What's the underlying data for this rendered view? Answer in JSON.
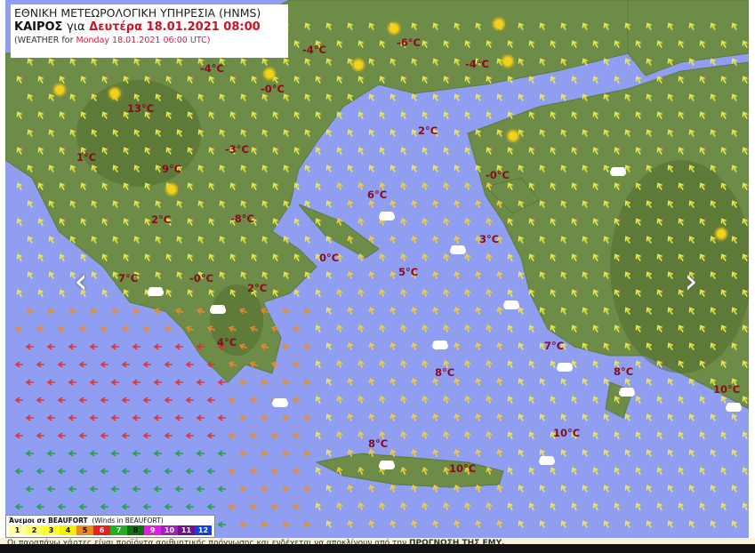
{
  "header": {
    "agency": "ΕΘΝΙΚΗ ΜΕΤΕΩΡΟΛΟΓΙΚΗ ΥΠΗΡΕΣΙΑ (HNMS)",
    "title_bold": "ΚΑΙΡΟΣ",
    "title_for": "για",
    "title_date": "Δευτέρα 18.01.2021 08:00",
    "subtitle_prefix": "(WEATHER for",
    "subtitle_date": "Monday 18.01.2021 06:00 UTC)"
  },
  "temperatures": [
    "-4°C",
    "-4°C",
    "-6°C",
    "-4°C",
    "-0°C",
    "13°C",
    "2°C",
    "1°C",
    "9°C",
    "-3°C",
    "-0°C",
    "6°C",
    "2°C",
    "-8°C",
    "3°C",
    "0°C",
    "5°C",
    "7°C",
    "-0°C",
    "2°C",
    "4°C",
    "7°C",
    "8°C",
    "8°C",
    "10°C",
    "10°C",
    "8°C",
    "10°C"
  ],
  "legend": {
    "title": "Άνεμοι σε BEAUFORT",
    "title_en": "(Winds in BEAUFORT)",
    "levels": [
      {
        "label": "1",
        "color": "#ffffa0"
      },
      {
        "label": "2",
        "color": "#ffff60"
      },
      {
        "label": "3",
        "color": "#ffff30"
      },
      {
        "label": "4",
        "color": "#f8f000"
      },
      {
        "label": "5",
        "color": "#e88a20"
      },
      {
        "label": "6",
        "color": "#e82020"
      },
      {
        "label": "7",
        "color": "#20b020"
      },
      {
        "label": "8",
        "color": "#107010"
      },
      {
        "label": "9",
        "color": "#e020e0"
      },
      {
        "label": "10",
        "color": "#a020c0"
      },
      {
        "label": "11",
        "color": "#701090"
      },
      {
        "label": "12",
        "color": "#1040e0"
      }
    ]
  },
  "footer": {
    "text": "Οι παραπάνω χάρτες είναι προϊόντα αριθμητικής πρόγνωσης και ενδέχεται να αποκλίνουν από την",
    "text_bold": "ΠΡΟΓΝΩΣΗ ΤΗΣ ΕΜΥ."
  },
  "nav": {
    "prev": "‹",
    "next": "›"
  },
  "colors": {
    "sea": "#8f9ef0",
    "land": "#6f8f4a",
    "temperature": "#8a0a1a"
  }
}
